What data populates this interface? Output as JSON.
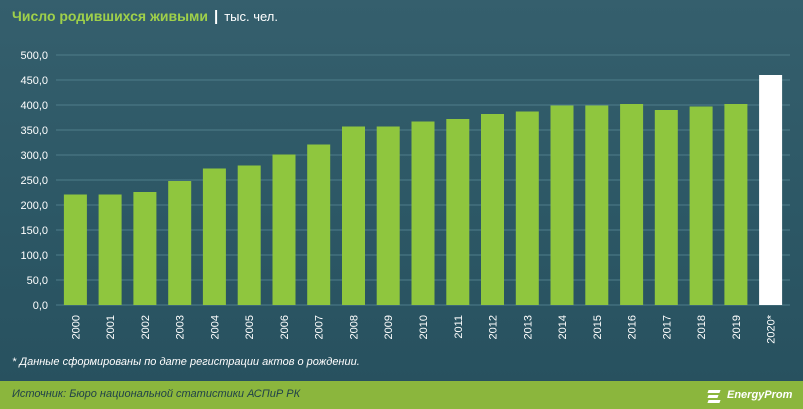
{
  "header": {
    "title": "Число родившихся живыми",
    "separator": "|",
    "unit": "тыс. чел."
  },
  "footnote": "* Данные сформированы по дате регистрации актов о рождении.",
  "source": "Источник: Бюро национальной статистики АСПиР РК",
  "logo": {
    "text": "EnergyProm",
    "icon": "energyprom-logo-icon"
  },
  "colors": {
    "bar": "#8fc63e",
    "bar_highlight": "#ffffff",
    "grid": "#4f7d8a",
    "title": "#9fd04a",
    "footer_bar": "#8bb63d"
  },
  "chart_data": {
    "type": "bar",
    "title": "Число родившихся живыми",
    "ylim": [
      0,
      500
    ],
    "ytick_step": 50,
    "ytick_labels": [
      "0,0",
      "50,0",
      "100,0",
      "150,0",
      "200,0",
      "250,0",
      "300,0",
      "350,0",
      "400,0",
      "450,0",
      "500,0"
    ],
    "grid": true,
    "categories": [
      "2000",
      "2001",
      "2002",
      "2003",
      "2004",
      "2005",
      "2006",
      "2007",
      "2008",
      "2009",
      "2010",
      "2011",
      "2012",
      "2013",
      "2014",
      "2015",
      "2016",
      "2017",
      "2018",
      "2019",
      "2020*"
    ],
    "values": [
      221,
      221,
      226,
      248,
      273,
      279,
      301,
      321,
      357,
      357,
      367,
      372,
      382,
      387,
      399,
      399,
      402,
      390,
      397,
      402,
      460
    ],
    "highlight_index": 20
  }
}
